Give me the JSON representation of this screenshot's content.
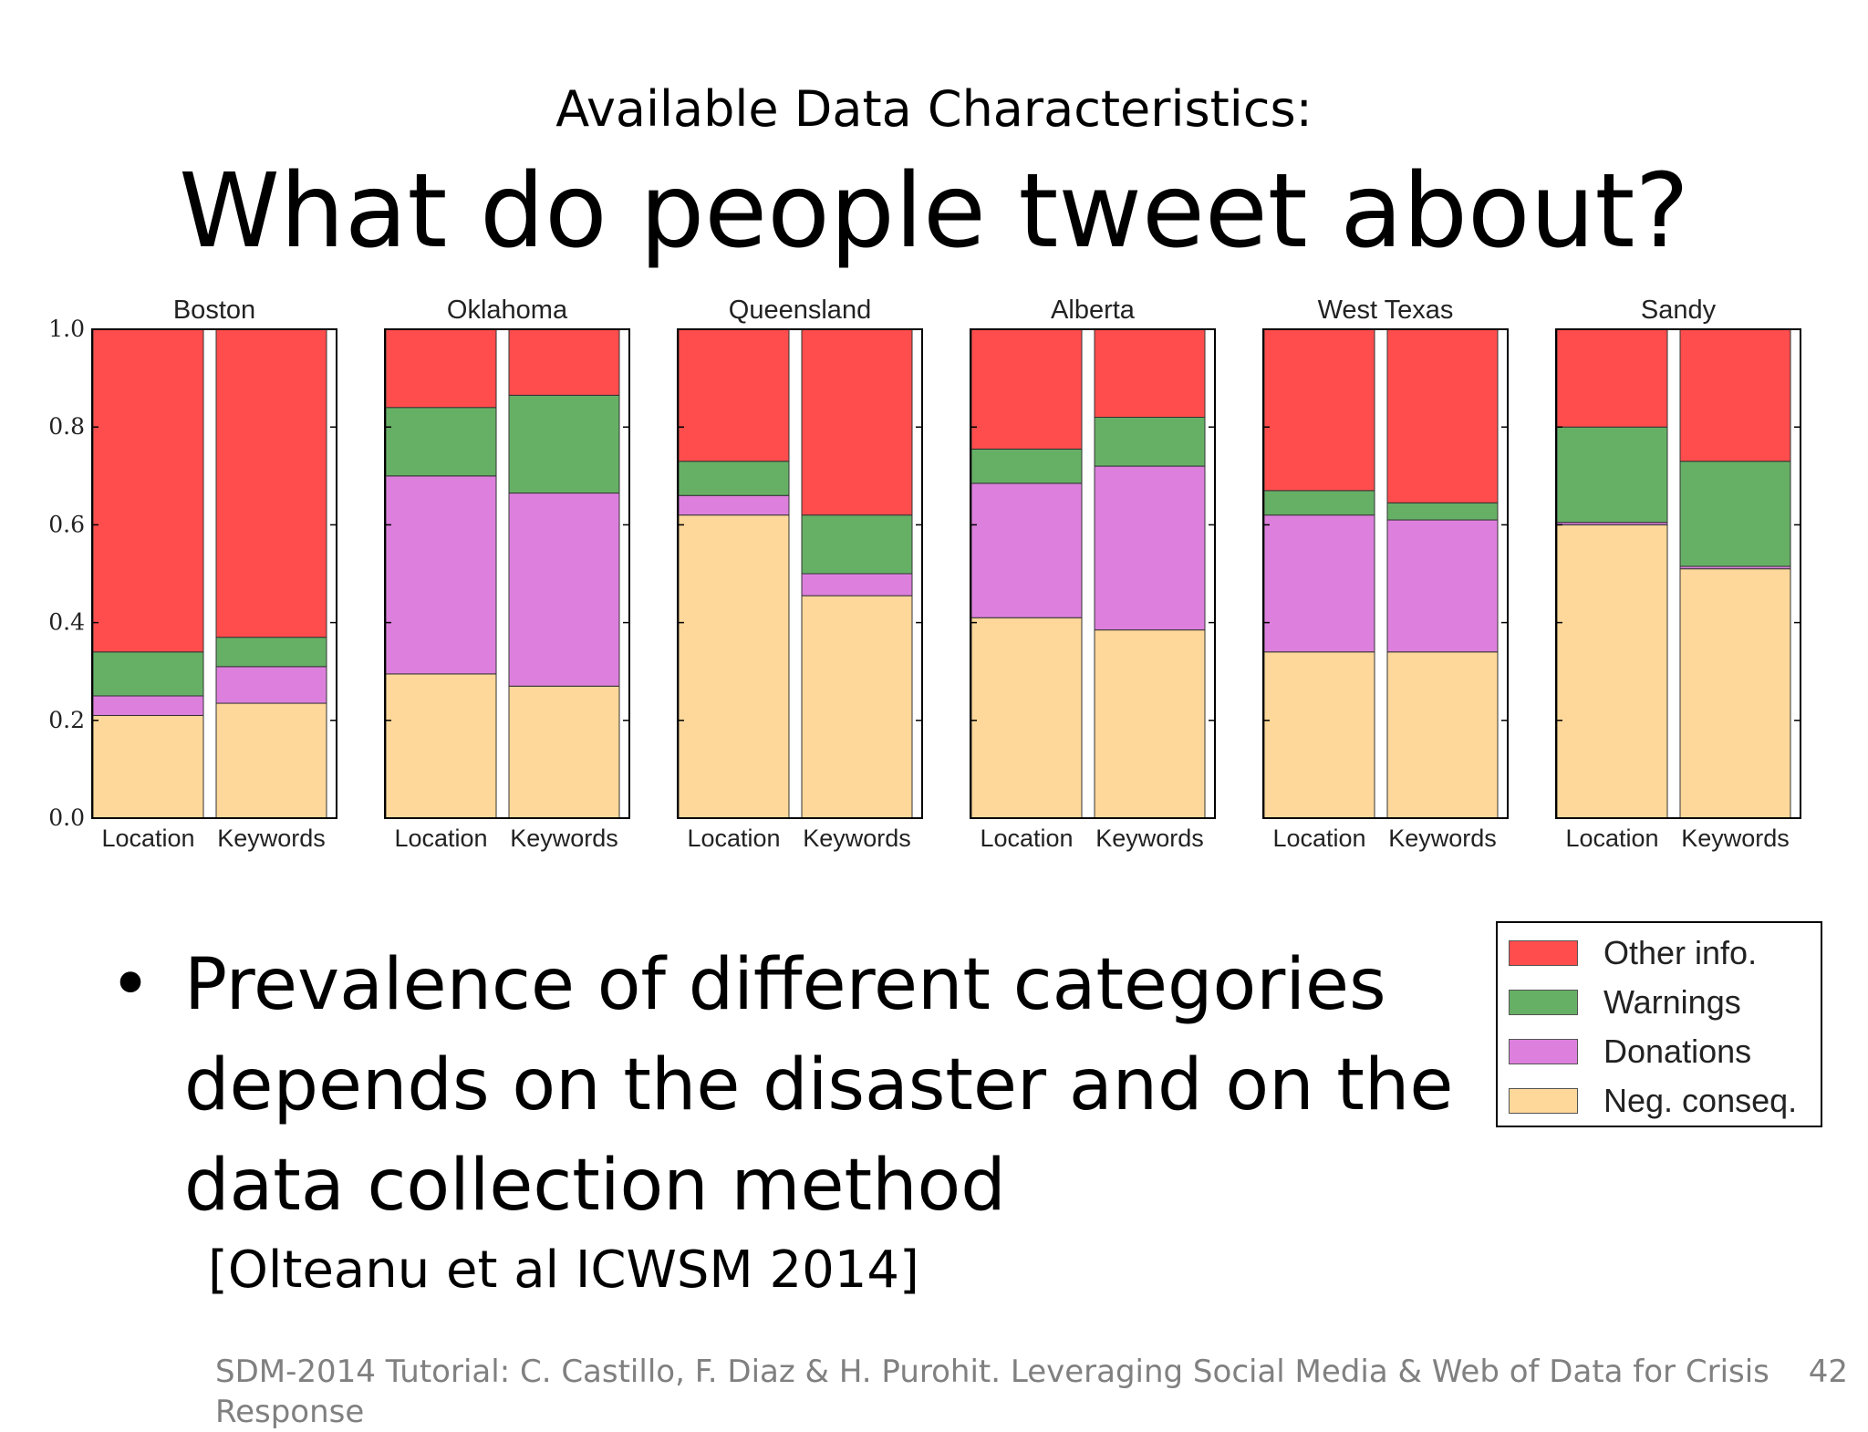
{
  "slide": {
    "subtitle": "Available Data Characteristics:",
    "title": "What do people tweet about?",
    "bullet": "Prevalence of different categories depends on the disaster and on the data collection method",
    "citation": "[Olteanu et al ICWSM 2014]",
    "footer": "SDM-2014 Tutorial: C. Castillo, F. Diaz & H. Purohit. Leveraging Social Media & Web of Data for Crisis Response",
    "page_number": "42"
  },
  "legend": {
    "items": [
      {
        "label": "Other info.",
        "color": "#ff4d4d"
      },
      {
        "label": "Warnings",
        "color": "#66b066"
      },
      {
        "label": "Donations",
        "color": "#dd80dd"
      },
      {
        "label": "Neg. conseq.",
        "color": "#fdd89a"
      }
    ]
  },
  "chart_data": {
    "type": "bar",
    "stacked": true,
    "ylim": [
      0,
      1.0
    ],
    "y_ticks": [
      "0.0",
      "0.2",
      "0.4",
      "0.6",
      "0.8",
      "1.0"
    ],
    "categories": [
      "Location",
      "Keywords"
    ],
    "series_colors": {
      "Other info.": "#ff4d4d",
      "Warnings": "#66b066",
      "Donations": "#dd80dd",
      "Neg. conseq.": "#fdd89a"
    },
    "panels": [
      {
        "title": "Boston",
        "bars": [
          {
            "category": "Location",
            "Neg. conseq.": 0.21,
            "Donations": 0.04,
            "Warnings": 0.09,
            "Other info.": 0.66
          },
          {
            "category": "Keywords",
            "Neg. conseq.": 0.235,
            "Donations": 0.075,
            "Warnings": 0.06,
            "Other info.": 0.63
          }
        ]
      },
      {
        "title": "Oklahoma",
        "bars": [
          {
            "category": "Location",
            "Neg. conseq.": 0.295,
            "Donations": 0.405,
            "Warnings": 0.14,
            "Other info.": 0.16
          },
          {
            "category": "Keywords",
            "Neg. conseq.": 0.27,
            "Donations": 0.395,
            "Warnings": 0.2,
            "Other info.": 0.135
          }
        ]
      },
      {
        "title": "Queensland",
        "bars": [
          {
            "category": "Location",
            "Neg. conseq.": 0.62,
            "Donations": 0.04,
            "Warnings": 0.07,
            "Other info.": 0.27
          },
          {
            "category": "Keywords",
            "Neg. conseq.": 0.455,
            "Donations": 0.045,
            "Warnings": 0.12,
            "Other info.": 0.38
          }
        ]
      },
      {
        "title": "Alberta",
        "bars": [
          {
            "category": "Location",
            "Neg. conseq.": 0.41,
            "Donations": 0.275,
            "Warnings": 0.07,
            "Other info.": 0.245
          },
          {
            "category": "Keywords",
            "Neg. conseq.": 0.385,
            "Donations": 0.335,
            "Warnings": 0.1,
            "Other info.": 0.18
          }
        ]
      },
      {
        "title": "West Texas",
        "bars": [
          {
            "category": "Location",
            "Neg. conseq.": 0.34,
            "Donations": 0.28,
            "Warnings": 0.05,
            "Other info.": 0.33
          },
          {
            "category": "Keywords",
            "Neg. conseq.": 0.34,
            "Donations": 0.27,
            "Warnings": 0.035,
            "Other info.": 0.355
          }
        ]
      },
      {
        "title": "Sandy",
        "bars": [
          {
            "category": "Location",
            "Neg. conseq.": 0.6,
            "Donations": 0.005,
            "Warnings": 0.195,
            "Other info.": 0.2
          },
          {
            "category": "Keywords",
            "Neg. conseq.": 0.51,
            "Donations": 0.005,
            "Warnings": 0.215,
            "Other info.": 0.27
          }
        ]
      }
    ]
  }
}
